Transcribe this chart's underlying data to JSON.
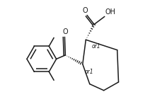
{
  "bg_color": "#ffffff",
  "line_color": "#1a1a1a",
  "line_width": 1.1,
  "font_size": 7.0,
  "or1_font_size": 5.5,
  "label_O": "O",
  "label_OH": "OH",
  "label_or1": "or1"
}
